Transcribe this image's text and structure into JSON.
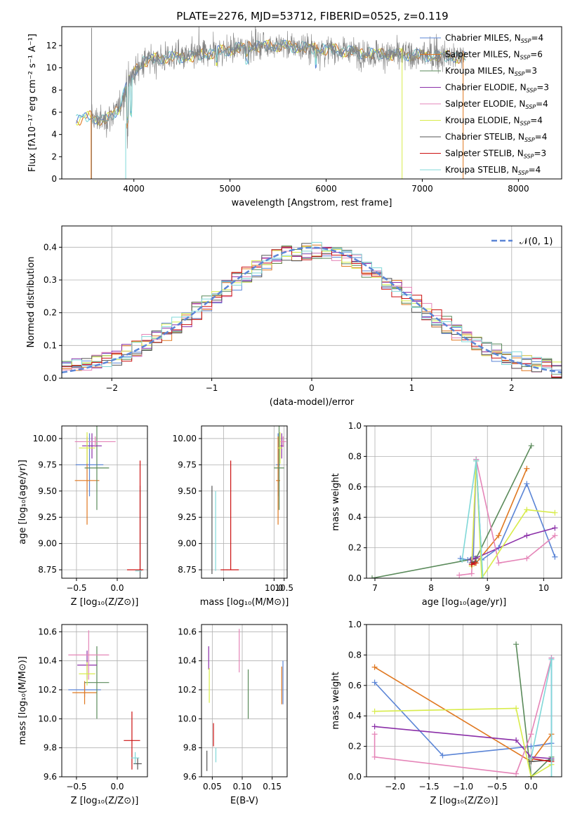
{
  "figure": {
    "title": "PLATE=2276, MJD=53712, FIBERID=0525, z=0.119"
  },
  "models": [
    {
      "label": "Chabrier MILES",
      "nssp": "4",
      "color": "#5b85d6"
    },
    {
      "label": "Salpeter MILES",
      "nssp": "6",
      "color": "#e07820"
    },
    {
      "label": "Kroupa MILES",
      "nssp": "3",
      "color": "#5a8a5a"
    },
    {
      "label": "Chabrier ELODIE",
      "nssp": "3",
      "color": "#8b2fa8"
    },
    {
      "label": "Salpeter ELODIE",
      "nssp": "4",
      "color": "#e585b8"
    },
    {
      "label": "Kroupa ELODIE",
      "nssp": "4",
      "color": "#d8ec4a"
    },
    {
      "label": "Chabrier STELIB",
      "nssp": "4",
      "color": "#555555"
    },
    {
      "label": "Salpeter STELIB",
      "nssp": "3",
      "color": "#cc1111"
    },
    {
      "label": "Kroupa STELIB",
      "nssp": "4",
      "color": "#80d8d8"
    }
  ],
  "chart_data": [
    {
      "id": "spectrum",
      "type": "line",
      "xlabel": "wavelength [Angstrom, rest frame]",
      "ylabel": "Flux [fλ10⁻¹⁷ erg cm⁻² s⁻¹ A⁻¹]",
      "xlim": [
        3250,
        8450
      ],
      "ylim": [
        0,
        13.7
      ],
      "grid": false,
      "legend": "right",
      "xticks": [
        4000,
        5000,
        6000,
        7000,
        8000
      ],
      "yticks": [
        0,
        2,
        4,
        6,
        8,
        10,
        12
      ],
      "continuum": {
        "x": [
          3400,
          3550,
          3700,
          3850,
          3950,
          4100,
          4300,
          4600,
          4900,
          5200,
          5500,
          5800,
          6100,
          6400,
          6700,
          7000,
          7300,
          7450
        ],
        "y": [
          5.3,
          5.6,
          5.2,
          6.4,
          9.0,
          10.6,
          10.9,
          11.0,
          11.5,
          11.9,
          12.0,
          11.8,
          11.6,
          11.3,
          11.2,
          11.1,
          11.0,
          10.9
        ]
      }
    },
    {
      "id": "residuals",
      "type": "step",
      "xlabel": "(data-model)/error",
      "ylabel": "Normed distribution",
      "xlim": [
        -2.5,
        2.5
      ],
      "ylim": [
        0,
        0.465
      ],
      "grid": true,
      "legend": "top-right",
      "xticks": [
        -2,
        -1,
        0,
        1,
        2
      ],
      "yticks": [
        0.0,
        0.1,
        0.2,
        0.3,
        0.4
      ],
      "reference_label": "𝒩(0, 1)",
      "reference_color": "#5b85d6"
    },
    {
      "id": "age_vs_Z",
      "type": "errorbar",
      "xlabel": "Z [log₁₀(Z/Z⊙)]",
      "ylabel": "age  [log₁₀(age/yr)]",
      "xlim": [
        -0.68,
        0.37
      ],
      "ylim": [
        8.67,
        10.12
      ],
      "grid": true,
      "xticks": [
        -0.5,
        0.0
      ],
      "yticks": [
        8.75,
        9.0,
        9.25,
        9.5,
        9.75,
        10.0
      ],
      "points": [
        {
          "m": 0,
          "x": -0.34,
          "y": 9.75,
          "xerr": 0.17,
          "yerr": 0.3
        },
        {
          "m": 1,
          "x": -0.37,
          "y": 9.6,
          "xerr": 0.15,
          "yerr": 0.42
        },
        {
          "m": 2,
          "x": -0.25,
          "y": 9.72,
          "xerr": 0.15,
          "yerr": 0.4
        },
        {
          "m": 3,
          "x": -0.31,
          "y": 9.93,
          "xerr": 0.12,
          "yerr": 0.12
        },
        {
          "m": 4,
          "x": -0.27,
          "y": 9.97,
          "xerr": 0.25,
          "yerr": 0.05
        },
        {
          "m": 5,
          "x": -0.37,
          "y": 9.91,
          "xerr": 0.1,
          "yerr": 0.15
        },
        {
          "m": 6,
          "x": 0.28,
          "y": 9.1,
          "xerr": 0.0,
          "yerr": 0.45
        },
        {
          "m": 7,
          "x": 0.22,
          "y": 8.75,
          "xerr": 0.1,
          "yerr": 0.0
        },
        {
          "m": 7,
          "x": 0.28,
          "y": 9.27,
          "xerr": 0.0,
          "yerr": 0.52
        },
        {
          "m": 8,
          "x": 0.26,
          "y": 8.74,
          "xerr": 0.04,
          "yerr": 0.0
        }
      ]
    },
    {
      "id": "age_vs_mass",
      "type": "errorbar",
      "xlabel": "mass [log₁₀(M/M⊙)]",
      "ylabel": "",
      "xlim": [
        6.4,
        10.65
      ],
      "ylim": [
        8.67,
        10.12
      ],
      "grid": true,
      "xticks": [
        7.5,
        10.0,
        10.5
      ],
      "xtick_labels": [
        "",
        "10.0",
        "10.5"
      ],
      "yticks": [
        8.75,
        9.0,
        9.25,
        9.5,
        9.75,
        10.0
      ],
      "points": [
        {
          "m": 0,
          "x": 10.2,
          "y": 9.75,
          "xerr": 0.1,
          "yerr": 0.3
        },
        {
          "m": 1,
          "x": 10.2,
          "y": 9.6,
          "xerr": 0.1,
          "yerr": 0.42
        },
        {
          "m": 2,
          "x": 10.25,
          "y": 9.72,
          "xerr": 0.25,
          "yerr": 0.4
        },
        {
          "m": 3,
          "x": 10.38,
          "y": 9.93,
          "xerr": 0.1,
          "yerr": 0.12
        },
        {
          "m": 4,
          "x": 10.45,
          "y": 9.97,
          "xerr": 0.15,
          "yerr": 0.05
        },
        {
          "m": 5,
          "x": 10.3,
          "y": 9.91,
          "xerr": 0.1,
          "yerr": 0.15
        },
        {
          "m": 6,
          "x": 6.92,
          "y": 9.13,
          "xerr": 0.0,
          "yerr": 0.42
        },
        {
          "m": 7,
          "x": 7.8,
          "y": 8.75,
          "xerr": 0.45,
          "yerr": 0.0
        },
        {
          "m": 7,
          "x": 7.85,
          "y": 9.27,
          "xerr": 0.0,
          "yerr": 0.52
        },
        {
          "m": 8,
          "x": 7.1,
          "y": 9.12,
          "xerr": 0.0,
          "yerr": 0.38
        }
      ]
    },
    {
      "id": "weight_vs_age",
      "type": "line",
      "xlabel": "age  [log₁₀(age/yr)]",
      "ylabel": "mass weight",
      "xlim": [
        6.85,
        10.32
      ],
      "ylim": [
        0,
        1.0
      ],
      "grid": true,
      "xticks": [
        7,
        8,
        9,
        10
      ],
      "yticks": [
        0.0,
        0.2,
        0.4,
        0.6,
        0.8,
        1.0
      ],
      "series": [
        {
          "m": 0,
          "x": [
            8.52,
            8.65,
            8.75,
            8.8,
            8.9,
            9.2,
            9.7,
            10.2
          ],
          "y": [
            0.13,
            0.12,
            0.14,
            0.78,
            0.12,
            0.2,
            0.62,
            0.14
          ]
        },
        {
          "m": 1,
          "x": [
            8.8,
            9.2,
            9.7
          ],
          "y": [
            0.1,
            0.28,
            0.72
          ]
        },
        {
          "m": 2,
          "x": [
            6.95,
            8.8,
            9.78
          ],
          "y": [
            0.0,
            0.13,
            0.87
          ]
        },
        {
          "m": 3,
          "x": [
            8.7,
            8.78,
            9.7,
            10.2
          ],
          "y": [
            0.12,
            0.13,
            0.28,
            0.33
          ]
        },
        {
          "m": 4,
          "x": [
            8.5,
            8.72,
            8.8,
            9.2,
            9.7,
            10.2
          ],
          "y": [
            0.02,
            0.03,
            0.78,
            0.1,
            0.13,
            0.28
          ]
        },
        {
          "m": 5,
          "x": [
            8.72,
            8.8,
            8.9,
            9.7,
            10.2
          ],
          "y": [
            0.08,
            0.77,
            0.0,
            0.45,
            0.43
          ]
        },
        {
          "m": 6,
          "x": [
            8.72,
            8.78
          ],
          "y": [
            0.1,
            0.11
          ]
        },
        {
          "m": 7,
          "x": [
            8.72,
            8.78
          ],
          "y": [
            0.09,
            0.1
          ]
        },
        {
          "m": 8,
          "x": [
            8.55,
            8.8,
            8.92
          ],
          "y": [
            0.12,
            0.77,
            0.0
          ]
        }
      ]
    },
    {
      "id": "mass_vs_Z",
      "type": "errorbar",
      "xlabel": "Z [log₁₀(Z/Z⊙)]",
      "ylabel": "mass [log₁₀(M/M⊙)]",
      "xlim": [
        -0.68,
        0.37
      ],
      "ylim": [
        9.6,
        10.65
      ],
      "grid": true,
      "xticks": [
        -0.5,
        0.0
      ],
      "yticks": [
        9.6,
        9.8,
        10.0,
        10.2,
        10.4,
        10.6
      ],
      "points": [
        {
          "m": 0,
          "x": -0.4,
          "y": 10.2,
          "xerr": 0.2,
          "yerr": 0.05
        },
        {
          "m": 1,
          "x": -0.4,
          "y": 10.18,
          "xerr": 0.15,
          "yerr": 0.08
        },
        {
          "m": 2,
          "x": -0.25,
          "y": 10.25,
          "xerr": 0.15,
          "yerr": 0.25
        },
        {
          "m": 3,
          "x": -0.37,
          "y": 10.37,
          "xerr": 0.12,
          "yerr": 0.1
        },
        {
          "m": 4,
          "x": -0.35,
          "y": 10.44,
          "xerr": 0.25,
          "yerr": 0.17
        },
        {
          "m": 5,
          "x": -0.37,
          "y": 10.31,
          "xerr": 0.1,
          "yerr": 0.08
        },
        {
          "m": 6,
          "x": 0.25,
          "y": 9.69,
          "xerr": 0.05,
          "yerr": 0.04
        },
        {
          "m": 7,
          "x": 0.18,
          "y": 9.85,
          "xerr": 0.1,
          "yerr": 0.2
        },
        {
          "m": 8,
          "x": 0.22,
          "y": 9.73,
          "xerr": 0.05,
          "yerr": 0.04
        }
      ]
    },
    {
      "id": "mass_vs_ebv",
      "type": "errorbar",
      "xlabel": "E(B-V)",
      "ylabel": "",
      "xlim": [
        0.032,
        0.175
      ],
      "ylim": [
        9.6,
        10.65
      ],
      "grid": true,
      "xticks": [
        0.05,
        0.1,
        0.15
      ],
      "yticks": [
        9.6,
        9.8,
        10.0,
        10.2,
        10.4,
        10.6
      ],
      "points": [
        {
          "m": 0,
          "x": 0.168,
          "y": 10.25,
          "xerr": 0.0,
          "yerr": 0.15
        },
        {
          "m": 1,
          "x": 0.166,
          "y": 10.23,
          "xerr": 0.0,
          "yerr": 0.13
        },
        {
          "m": 2,
          "x": 0.11,
          "y": 10.17,
          "xerr": 0.0,
          "yerr": 0.17
        },
        {
          "m": 3,
          "x": 0.044,
          "y": 10.42,
          "xerr": 0.0,
          "yerr": 0.08
        },
        {
          "m": 4,
          "x": 0.095,
          "y": 10.47,
          "xerr": 0.0,
          "yerr": 0.15
        },
        {
          "m": 5,
          "x": 0.045,
          "y": 10.23,
          "xerr": 0.0,
          "yerr": 0.12
        },
        {
          "m": 6,
          "x": 0.041,
          "y": 9.71,
          "xerr": 0.0,
          "yerr": 0.07
        },
        {
          "m": 7,
          "x": 0.052,
          "y": 9.89,
          "xerr": 0.0,
          "yerr": 0.08
        },
        {
          "m": 8,
          "x": 0.056,
          "y": 9.75,
          "xerr": 0.0,
          "yerr": 0.05
        }
      ]
    },
    {
      "id": "weight_vs_Z",
      "type": "line",
      "xlabel": "Z [log₁₀(Z/Z⊙)]",
      "ylabel": "mass weight",
      "xlim": [
        -2.42,
        0.45
      ],
      "ylim": [
        0,
        1.0
      ],
      "grid": true,
      "xticks": [
        -2.0,
        -1.5,
        -1.0,
        -0.5,
        0.0
      ],
      "yticks": [
        0.0,
        0.2,
        0.4,
        0.6,
        0.8,
        1.0
      ],
      "series": [
        {
          "m": 0,
          "x": [
            -2.3,
            -1.3,
            0.0,
            0.3,
            0.3
          ],
          "y": [
            0.62,
            0.14,
            0.2,
            0.22,
            0.78
          ]
        },
        {
          "m": 1,
          "x": [
            -2.3,
            0.0,
            0.3
          ],
          "y": [
            0.72,
            0.1,
            0.28
          ]
        },
        {
          "m": 2,
          "x": [
            -0.22,
            0.0,
            0.3
          ],
          "y": [
            0.87,
            0.0,
            0.13
          ]
        },
        {
          "m": 3,
          "x": [
            -2.3,
            -0.22,
            0.0,
            0.3
          ],
          "y": [
            0.33,
            0.24,
            0.13,
            0.12
          ]
        },
        {
          "m": 4,
          "x": [
            -2.3,
            -2.3,
            -0.22,
            0.0,
            0.3
          ],
          "y": [
            0.28,
            0.13,
            0.02,
            0.28,
            0.78
          ]
        },
        {
          "m": 5,
          "x": [
            -2.3,
            -0.22,
            0.0,
            0.3
          ],
          "y": [
            0.43,
            0.45,
            0.0,
            0.08
          ]
        },
        {
          "m": 6,
          "x": [
            0.0,
            0.3
          ],
          "y": [
            0.1,
            0.11
          ]
        },
        {
          "m": 7,
          "x": [
            0.0,
            0.3
          ],
          "y": [
            0.12,
            0.1
          ]
        },
        {
          "m": 8,
          "x": [
            0.0,
            0.3,
            0.3
          ],
          "y": [
            0.12,
            0.77,
            0.0
          ]
        }
      ]
    }
  ]
}
